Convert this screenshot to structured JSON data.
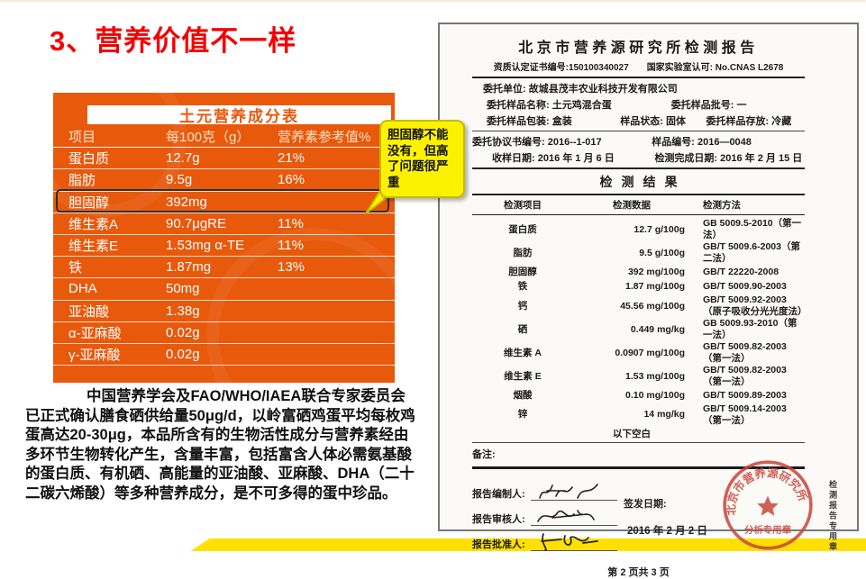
{
  "slide": {
    "title": "3、营养价值不一样",
    "callout_text": "胆固醇不能没有，但高了问题很严重",
    "paragraph": "中国营养学会及FAO/WHO/IAEA联合专家委员会已正式确认膳食硒供给量50μg/d，以岭富硒鸡蛋平均每枚鸡蛋高达20-30μg，本品所含有的生物活性成分与营养素经由多环节生物转化产生，含量丰富，包括富含人体必需氨基酸的蛋白质、有机硒、高能量的亚油酸、亚麻酸、DHA（二十二碳六烯酸）等多种营养成分，是不可多得的蛋中珍品。"
  },
  "nutrition_table": {
    "title": "土元营养成分表",
    "headers": [
      "项目",
      "每100克（g）",
      "营养素参考值%"
    ],
    "rows": [
      {
        "name": "蛋白质",
        "value": "12.7g",
        "ref": "21%"
      },
      {
        "name": "脂肪",
        "value": "9.5g",
        "ref": "16%"
      },
      {
        "name": "胆固醇",
        "value": "392mg",
        "ref": ""
      },
      {
        "name": "维生素A",
        "value": "90.7μgRE",
        "ref": "11%"
      },
      {
        "name": "维生素E",
        "value": "1.53mg α-TE",
        "ref": "11%"
      },
      {
        "name": "铁",
        "value": "1.87mg",
        "ref": "13%"
      },
      {
        "name": "DHA",
        "value": "50mg",
        "ref": ""
      },
      {
        "name": "亚油酸",
        "value": "1.38g",
        "ref": ""
      },
      {
        "name": "α-亚麻酸",
        "value": "0.02g",
        "ref": ""
      },
      {
        "name": "γ-亚麻酸",
        "value": "0.02g",
        "ref": ""
      }
    ]
  },
  "report": {
    "title": "北京市营养源研究所检测报告",
    "cert_left": "资质认定证书编号:150100340027",
    "cert_right": "国家实验室认可: No.CNAS L2678",
    "info_rows": [
      [
        "委托单位: 故城县茂丰农业科技开发有限公司"
      ],
      [
        "委托样品名称: 土元鸡混合蛋",
        "委托样品批号: 一"
      ],
      [
        "委托样品包装: 盒装",
        "样品状态: 固体",
        "委托样品存放: 冷藏"
      ],
      [
        "委托协议书编号: 2016--1-017",
        "样品编号: 2016—0048"
      ],
      [
        "收样日期: 2016 年 1 月 6 日",
        "检测完成日期: 2016 年 2 月 15 日"
      ]
    ],
    "results_title": "检测结果",
    "results_headers": [
      "检测项目",
      "检测数据",
      "检测方法"
    ],
    "results": [
      {
        "item": "蛋白质",
        "value": "12.7 g/100g",
        "method": "GB 5009.5-2010（第一法）"
      },
      {
        "item": "脂肪",
        "value": "9.5 g/100g",
        "method": "GB/T 5009.6-2003（第二法）"
      },
      {
        "item": "胆固醇",
        "value": "392 mg/100g",
        "method": "GB/T 22220-2008"
      },
      {
        "item": "铁",
        "value": "1.87 mg/100g",
        "method": "GB/T 5009.90-2003"
      },
      {
        "item": "钙",
        "value": "45.56 mg/100g",
        "method": "GB/T 5009.92-2003（原子吸收分光光度法）"
      },
      {
        "item": "硒",
        "value": "0.449 mg/kg",
        "method": "GB 5009.93-2010（第一法）"
      },
      {
        "item": "维生素 A",
        "value": "0.0907 mg/100g",
        "method": "GB/T 5009.82-2003（第一法）"
      },
      {
        "item": "维生素 E",
        "value": "1.53 mg/100g",
        "method": "GB/T 5009.82-2003（第一法）"
      },
      {
        "item": "烟酸",
        "value": "0.10 mg/100g",
        "method": "GB/T 5009.89-2003"
      },
      {
        "item": "锌",
        "value": "14 mg/kg",
        "method": "GB/T 5009.14-2003（第一法）"
      }
    ],
    "blank_note": "以下空白",
    "remark_label": "备注:",
    "sign_labels": [
      "报告编制人:",
      "报告审核人:",
      "报告批准人:"
    ],
    "issue_label": "签发日期:",
    "issue_date": "2016 年 2 月 2 日",
    "stamp_org": "北京市营养源研究所",
    "stamp_label": "分析专用章",
    "side_stamp_text": "检测报告专用章",
    "page_footer": "第 2 页共 3 页"
  }
}
